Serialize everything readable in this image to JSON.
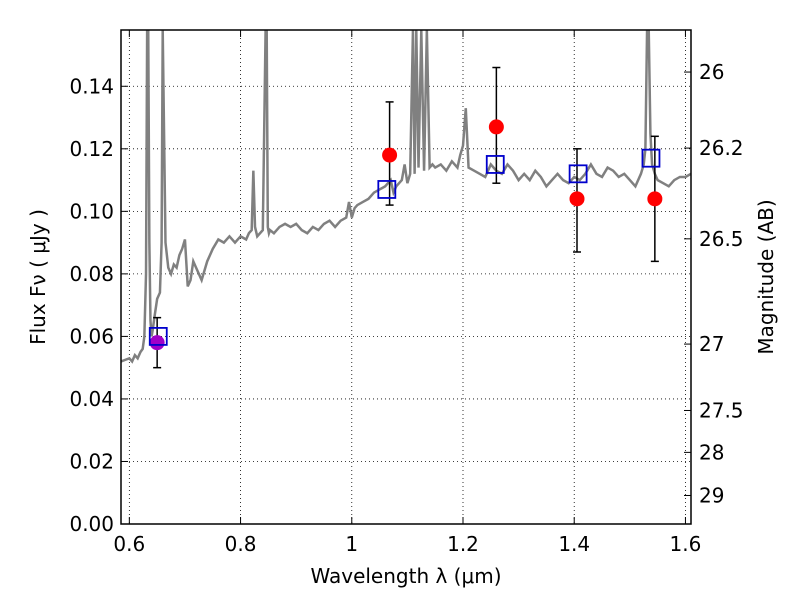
{
  "chart_data": {
    "type": "scatter",
    "xlabel": "Wavelength  λ (μm)",
    "ylabel": "Flux  Fν  ( μJy )",
    "y2label": "Magnitude (AB)",
    "xlim": [
      0.585,
      1.61
    ],
    "ylim": [
      0.0,
      0.158
    ],
    "x_ticks": [
      {
        "value": 0.6,
        "label": "0.6"
      },
      {
        "value": 0.8,
        "label": "0.8"
      },
      {
        "value": 1.0,
        "label": "1"
      },
      {
        "value": 1.2,
        "label": "1.2"
      },
      {
        "value": 1.4,
        "label": "1.4"
      },
      {
        "value": 1.6,
        "label": "1.6"
      }
    ],
    "y_ticks": [
      {
        "value": 0.0,
        "label": "0.00"
      },
      {
        "value": 0.02,
        "label": "0.02"
      },
      {
        "value": 0.04,
        "label": "0.04"
      },
      {
        "value": 0.06,
        "label": "0.06"
      },
      {
        "value": 0.08,
        "label": "0.08"
      },
      {
        "value": 0.1,
        "label": "0.10"
      },
      {
        "value": 0.12,
        "label": "0.12"
      },
      {
        "value": 0.14,
        "label": "0.14"
      }
    ],
    "y2_ticks": [
      {
        "value": 26,
        "label": "26"
      },
      {
        "value": 26.2,
        "label": "26.2"
      },
      {
        "value": 26.5,
        "label": "26.5"
      },
      {
        "value": 27,
        "label": "27"
      },
      {
        "value": 27.5,
        "label": "27.5"
      },
      {
        "value": 28,
        "label": "28"
      },
      {
        "value": 29,
        "label": "29"
      }
    ],
    "grid": true,
    "colors": {
      "model": "#808080",
      "observed": "#ff0000",
      "observed_first": "#a000c8",
      "model_photometry": "#0000cc",
      "errorbar": "#000000"
    },
    "series": [
      {
        "kind": "line",
        "x": [
          0.585,
          0.6,
          0.605,
          0.61,
          0.615,
          0.62,
          0.624,
          0.627,
          0.63,
          0.632,
          0.634,
          0.636,
          0.638,
          0.64,
          0.642,
          0.645,
          0.65,
          0.655,
          0.658,
          0.66,
          0.665,
          0.67,
          0.675,
          0.68,
          0.685,
          0.69,
          0.695,
          0.7,
          0.705,
          0.71,
          0.715,
          0.72,
          0.73,
          0.74,
          0.75,
          0.76,
          0.77,
          0.78,
          0.79,
          0.8,
          0.81,
          0.815,
          0.82,
          0.823,
          0.826,
          0.83,
          0.84,
          0.845,
          0.847,
          0.849,
          0.851,
          0.853,
          0.86,
          0.87,
          0.88,
          0.89,
          0.9,
          0.91,
          0.92,
          0.93,
          0.94,
          0.95,
          0.96,
          0.97,
          0.98,
          0.99,
          0.995,
          1.0,
          1.005,
          1.01,
          1.02,
          1.03,
          1.04,
          1.05,
          1.06,
          1.07,
          1.075,
          1.08,
          1.09,
          1.095,
          1.1,
          1.105,
          1.11,
          1.113,
          1.116,
          1.12,
          1.125,
          1.13,
          1.135,
          1.14,
          1.145,
          1.15,
          1.16,
          1.17,
          1.18,
          1.19,
          1.195,
          1.2,
          1.205,
          1.21,
          1.22,
          1.23,
          1.24,
          1.25,
          1.26,
          1.27,
          1.28,
          1.29,
          1.3,
          1.31,
          1.32,
          1.33,
          1.34,
          1.35,
          1.36,
          1.37,
          1.38,
          1.39,
          1.4,
          1.41,
          1.42,
          1.43,
          1.44,
          1.45,
          1.46,
          1.47,
          1.48,
          1.49,
          1.5,
          1.51,
          1.52,
          1.525,
          1.528,
          1.531,
          1.534,
          1.537,
          1.54,
          1.545,
          1.55,
          1.56,
          1.57,
          1.58,
          1.59,
          1.6,
          1.61
        ],
        "y": [
          0.052,
          0.053,
          0.052,
          0.054,
          0.053,
          0.055,
          0.056,
          0.06,
          0.08,
          0.158,
          0.158,
          0.09,
          0.065,
          0.06,
          0.062,
          0.066,
          0.072,
          0.074,
          0.09,
          0.158,
          0.09,
          0.082,
          0.08,
          0.083,
          0.082,
          0.086,
          0.088,
          0.091,
          0.076,
          0.078,
          0.084,
          0.082,
          0.078,
          0.084,
          0.088,
          0.091,
          0.09,
          0.092,
          0.09,
          0.092,
          0.091,
          0.093,
          0.094,
          0.113,
          0.095,
          0.092,
          0.094,
          0.158,
          0.158,
          0.095,
          0.093,
          0.094,
          0.093,
          0.095,
          0.096,
          0.095,
          0.096,
          0.094,
          0.093,
          0.095,
          0.094,
          0.096,
          0.097,
          0.095,
          0.097,
          0.098,
          0.103,
          0.098,
          0.101,
          0.102,
          0.103,
          0.104,
          0.106,
          0.107,
          0.108,
          0.11,
          0.106,
          0.108,
          0.11,
          0.115,
          0.109,
          0.112,
          0.158,
          0.112,
          0.158,
          0.114,
          0.158,
          0.113,
          0.158,
          0.114,
          0.115,
          0.114,
          0.115,
          0.113,
          0.116,
          0.114,
          0.118,
          0.121,
          0.133,
          0.114,
          0.113,
          0.112,
          0.111,
          0.115,
          0.113,
          0.112,
          0.115,
          0.113,
          0.11,
          0.112,
          0.11,
          0.113,
          0.111,
          0.108,
          0.11,
          0.112,
          0.11,
          0.109,
          0.111,
          0.11,
          0.112,
          0.115,
          0.112,
          0.111,
          0.114,
          0.113,
          0.111,
          0.112,
          0.11,
          0.108,
          0.112,
          0.115,
          0.12,
          0.158,
          0.158,
          0.125,
          0.115,
          0.112,
          0.11,
          0.109,
          0.108,
          0.11,
          0.111,
          0.111,
          0.112
        ]
      },
      {
        "kind": "points",
        "x": [
          0.65,
          1.068,
          1.26,
          1.405,
          1.545
        ],
        "y": [
          0.058,
          0.118,
          0.127,
          0.104,
          0.104
        ],
        "yerr_low": [
          0.05,
          0.102,
          0.109,
          0.087,
          0.084
        ],
        "yerr_high": [
          0.066,
          0.135,
          0.146,
          0.12,
          0.124
        ]
      },
      {
        "kind": "squares",
        "x": [
          0.652,
          1.063,
          1.258,
          1.407,
          1.538
        ],
        "y": [
          0.06,
          0.107,
          0.115,
          0.112,
          0.117
        ]
      }
    ]
  }
}
